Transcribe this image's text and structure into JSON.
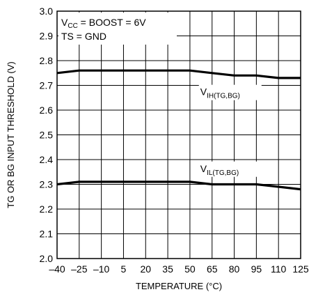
{
  "chart_data": {
    "type": "line",
    "xlabel": "TEMPERATURE (°C)",
    "ylabel": "TG OR BG INPUT THRESHOLD (V)",
    "xlim": [
      -40,
      125
    ],
    "ylim": [
      2.0,
      3.0
    ],
    "x_ticks": [
      -40,
      -25,
      -10,
      5,
      20,
      35,
      50,
      65,
      80,
      95,
      110,
      125
    ],
    "x_tick_labels": [
      "–40",
      "–25",
      "–10",
      "5",
      "20",
      "35",
      "50",
      "65",
      "80",
      "95",
      "110",
      "125"
    ],
    "y_ticks": [
      2.0,
      2.1,
      2.2,
      2.3,
      2.4,
      2.5,
      2.6,
      2.7,
      2.8,
      2.9,
      3.0
    ],
    "y_tick_labels": [
      "2.0",
      "2.1",
      "2.2",
      "2.3",
      "2.4",
      "2.5",
      "2.6",
      "2.7",
      "2.8",
      "2.9",
      "3.0"
    ],
    "grid": true,
    "conditions": {
      "line1_v": "V",
      "line1_sub": "CC",
      "line1_rest": " = BOOST = 6V",
      "line2": "TS = GND"
    },
    "series": [
      {
        "name": "VIH(TG,BG)",
        "label_main": "V",
        "label_sub": "IH(TG,BG)",
        "x": [
          -40,
          -25,
          -10,
          5,
          20,
          35,
          50,
          65,
          80,
          95,
          110,
          125
        ],
        "y": [
          2.75,
          2.76,
          2.76,
          2.76,
          2.76,
          2.76,
          2.76,
          2.75,
          2.74,
          2.74,
          2.73,
          2.73
        ]
      },
      {
        "name": "VIL(TG,BG)",
        "label_main": "V",
        "label_sub": "IL(TG,BG)",
        "x": [
          -40,
          -25,
          -10,
          5,
          20,
          35,
          50,
          65,
          80,
          95,
          110,
          125
        ],
        "y": [
          2.3,
          2.31,
          2.31,
          2.31,
          2.31,
          2.31,
          2.31,
          2.3,
          2.3,
          2.3,
          2.29,
          2.28
        ]
      }
    ],
    "colors": {
      "line": "#000000",
      "grid": "#000000",
      "background": "#ffffff"
    }
  }
}
